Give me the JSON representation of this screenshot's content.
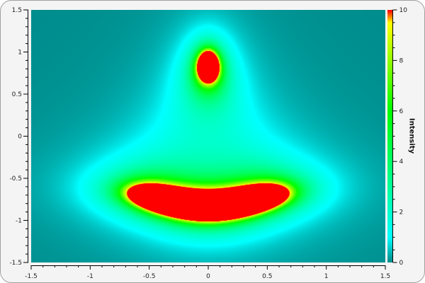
{
  "chart_data": {
    "type": "heatmap",
    "function": "z = 1 / (v1^2 + v2^2), v1 = x^2 + (y - c)(y + c), v2 = 2x(y + c), c = 0.842",
    "c": 0.842,
    "xlim": [
      -1.5,
      1.5
    ],
    "ylim": [
      -1.5,
      1.5
    ],
    "zlim": [
      0,
      10
    ],
    "x_ticks": [
      "-1.5",
      "-1",
      "-0.5",
      "0",
      "0.5",
      "1",
      "1.5"
    ],
    "y_ticks": [
      "-1.5",
      "-1",
      "-0.5",
      "0",
      "0.5",
      "1",
      "1.5"
    ],
    "colorbar_ticks": [
      "0",
      "2",
      "4",
      "6",
      "8",
      "10"
    ],
    "colorbar_label": "Intensity",
    "colormap": [
      {
        "stop": 0.0,
        "color": "#008b8b"
      },
      {
        "stop": 0.1,
        "color": "#00ffff"
      },
      {
        "stop": 0.6,
        "color": "#00ff00"
      },
      {
        "stop": 0.95,
        "color": "#ffff00"
      },
      {
        "stop": 1.0,
        "color": "#ff0000"
      }
    ],
    "grid": false
  }
}
